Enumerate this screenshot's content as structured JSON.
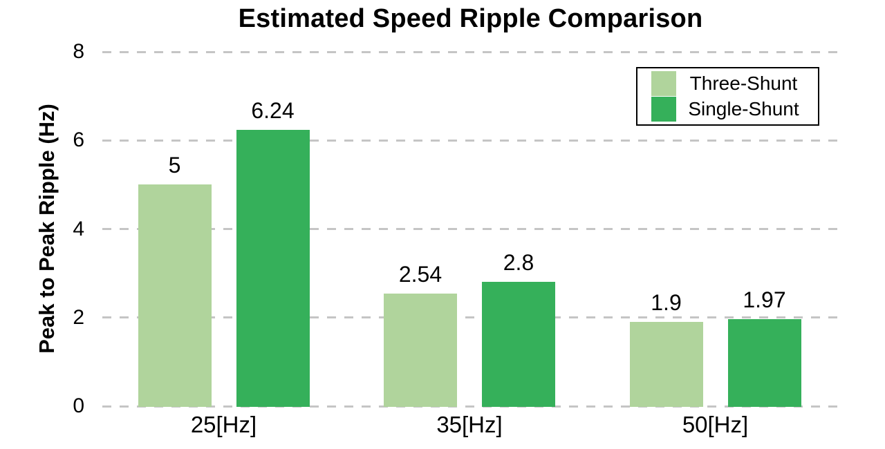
{
  "chart_data": {
    "type": "bar",
    "title": "Estimated Speed Ripple Comparison",
    "ylabel": "Peak to Peak Ripple (Hz)",
    "xlabel": "",
    "categories": [
      "25[Hz]",
      "35[Hz]",
      "50[Hz]"
    ],
    "series": [
      {
        "name": "Three-Shunt",
        "color": "#b0d49c",
        "values": [
          5,
          2.54,
          1.9
        ],
        "labels": [
          "5",
          "2.54",
          "1.9"
        ]
      },
      {
        "name": "Single-Shunt",
        "color": "#35b05a",
        "values": [
          6.24,
          2.8,
          1.97
        ],
        "labels": [
          "6.24",
          "2.8",
          "1.97"
        ]
      }
    ],
    "yticks": [
      0,
      2,
      4,
      6,
      8
    ],
    "ylim": [
      0,
      8
    ],
    "grid": "horizontal dashed",
    "legend_position": "upper right",
    "value_labels_shown": true
  },
  "colors": {
    "background": "#ffffff",
    "grid": "#c5c5c5",
    "text": "#000000",
    "three_shunt": "#b0d49c",
    "single_shunt": "#35b05a"
  }
}
